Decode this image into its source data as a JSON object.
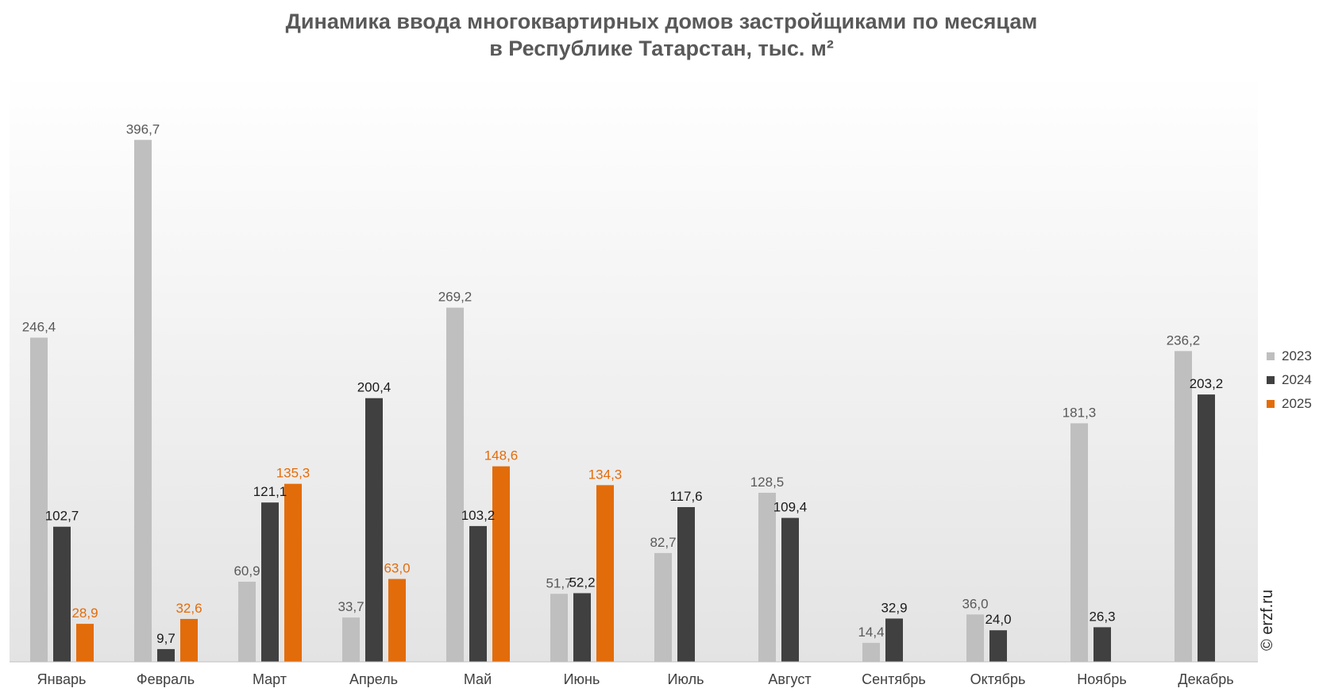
{
  "title": {
    "line1": "Динамика ввода многоквартирных домов застройщиками по месяцам",
    "line2": "в Республике Татарстан, тыс. м²"
  },
  "credit": "© erzf.ru",
  "colors": {
    "2023": "#bfbfbf",
    "2024": "#404040",
    "2025": "#e36c0a",
    "label_2023": "#595959",
    "label_2024": "#1a1a1a",
    "label_2025": "#e36c0a"
  },
  "chart_data": {
    "type": "bar",
    "categories": [
      "Январь",
      "Февраль",
      "Март",
      "Апрель",
      "Май",
      "Июнь",
      "Июль",
      "Август",
      "Сентябрь",
      "Октябрь",
      "Ноябрь",
      "Декабрь"
    ],
    "series": [
      {
        "name": "2023",
        "values": [
          246.4,
          396.7,
          60.9,
          33.7,
          269.2,
          51.7,
          82.7,
          128.5,
          14.4,
          36.0,
          181.3,
          236.2
        ],
        "labels": [
          "246,4",
          "396,7",
          "60,9",
          "33,7",
          "269,2",
          "51,7",
          "82,7",
          "128,5",
          "14,4",
          "36,0",
          "181,3",
          "236,2"
        ]
      },
      {
        "name": "2024",
        "values": [
          102.7,
          9.7,
          121.1,
          200.4,
          103.2,
          52.2,
          117.6,
          109.4,
          32.9,
          24.0,
          26.3,
          203.2
        ],
        "labels": [
          "102,7",
          "9,7",
          "121,1",
          "200,4",
          "103,2",
          "52,2",
          "117,6",
          "109,4",
          "32,9",
          "24,0",
          "26,3",
          "203,2"
        ]
      },
      {
        "name": "2025",
        "values": [
          28.9,
          32.6,
          135.3,
          63.0,
          148.6,
          134.3,
          null,
          null,
          null,
          null,
          null,
          null
        ],
        "labels": [
          "28,9",
          "32,6",
          "135,3",
          "63,0",
          "148,6",
          "134,3",
          null,
          null,
          null,
          null,
          null,
          null
        ]
      }
    ],
    "ylim": [
      0,
      440
    ],
    "grid": false,
    "legend": "right"
  }
}
